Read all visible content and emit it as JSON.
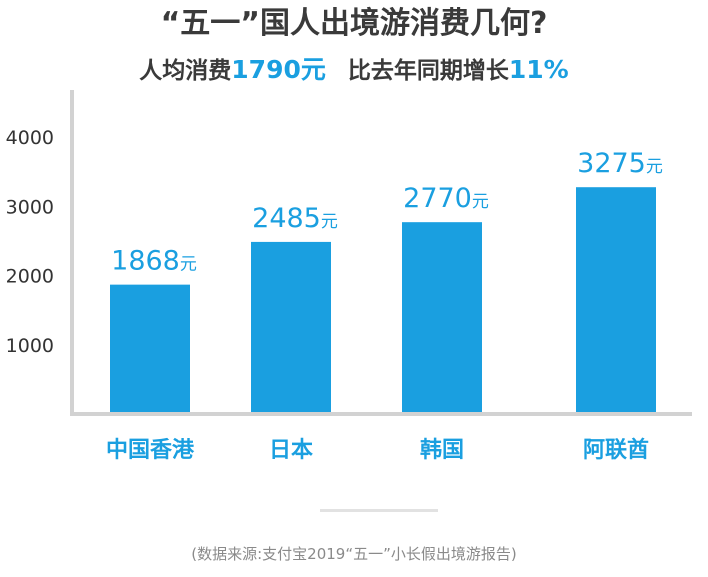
{
  "header": {
    "title": "“五一”国人出境游消费几何?",
    "subtitle_pre": "人均消费",
    "subtitle_avg_value": "1790元",
    "subtitle_mid": "比去年同期增长",
    "subtitle_growth_value": "11%"
  },
  "chart_data": {
    "type": "bar",
    "categories": [
      "中国香港",
      "日本",
      "韩国",
      "阿联酋"
    ],
    "values": [
      1868,
      2485,
      2770,
      3275
    ],
    "value_labels": [
      "1868",
      "2485",
      "2770",
      "3275"
    ],
    "unit": "元",
    "yticks": [
      "1000",
      "2000",
      "3000",
      "4000"
    ],
    "ylim": [
      0,
      4000
    ],
    "grid": false,
    "colors": {
      "bar": "#1a9fe0",
      "category_label": "#1a9fe0",
      "value_label": "#1a9fe0",
      "axis": "#d2d2d2",
      "tick_label": "#333333"
    }
  },
  "footer": {
    "source": "(数据来源:支付宝2019“五一”小长假出境游报告)"
  }
}
